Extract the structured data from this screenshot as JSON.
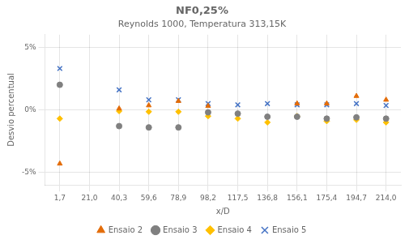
{
  "chart_data": {
    "type": "scatter",
    "title": "NF0,25%",
    "subtitle": "Reynolds 1000, Temperatura 313,15K",
    "x_label": "x/D",
    "y_label": "Desvio percentual",
    "categories": [
      "1,7",
      "21,0",
      "40,3",
      "59,6",
      "78,9",
      "98,2",
      "117,5",
      "136,8",
      "156,1",
      "175,4",
      "194,7",
      "214,0"
    ],
    "series": [
      {
        "name": "Ensaio 2",
        "color": "#E36C09",
        "marker": "triangle",
        "values": [
          -4.3,
          null,
          0.1,
          0.35,
          0.7,
          0.3,
          null,
          null,
          0.5,
          0.5,
          1.1,
          0.8
        ]
      },
      {
        "name": "Ensaio 3",
        "color": "#808080",
        "marker": "circle",
        "values": [
          2.0,
          null,
          -1.3,
          -1.4,
          -1.4,
          -0.2,
          -0.3,
          -0.55,
          -0.55,
          -0.7,
          -0.6,
          -0.7
        ]
      },
      {
        "name": "Ensaio 4",
        "color": "#FFC000",
        "marker": "diamond",
        "values": [
          -0.7,
          null,
          -0.1,
          -0.15,
          -0.15,
          -0.5,
          -0.7,
          -1.0,
          -0.5,
          -0.9,
          -0.8,
          -1.0
        ]
      },
      {
        "name": "Ensaio 5",
        "color": "#4472C4",
        "marker": "x",
        "values": [
          3.3,
          null,
          1.6,
          0.8,
          0.8,
          0.5,
          0.4,
          0.5,
          0.4,
          0.4,
          0.5,
          0.35
        ]
      }
    ],
    "ylim": [
      -6,
      6
    ],
    "yticks": [
      {
        "value": -5,
        "label": "-5%"
      },
      {
        "value": 0,
        "label": "0%"
      },
      {
        "value": 5,
        "label": "5%"
      }
    ],
    "grid": true,
    "legend": "bottom"
  }
}
